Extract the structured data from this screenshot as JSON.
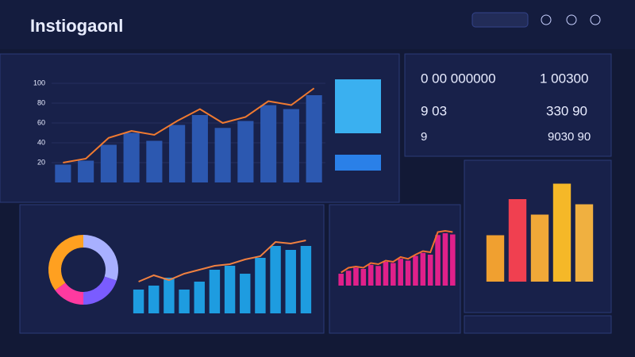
{
  "header": {
    "title": "Instiogaonl"
  },
  "kpis": [
    [
      "0 00 000000",
      "1 00300"
    ],
    [
      "9 03",
      "330 90"
    ],
    [
      "9",
      "9030 90"
    ]
  ],
  "charts": [
    {
      "type": "bar-line",
      "ylim": [
        0,
        100
      ],
      "yticks": [
        20,
        40,
        60,
        80,
        100
      ],
      "bars": [
        18,
        22,
        38,
        50,
        42,
        58,
        68,
        55,
        62,
        78,
        74,
        88
      ],
      "line": [
        20,
        24,
        45,
        52,
        48,
        62,
        74,
        60,
        66,
        82,
        78,
        95
      ],
      "bar_color": "#2c58b0",
      "line_color": "#f07a30"
    },
    {
      "type": "donut",
      "values": [
        30,
        20,
        15,
        35
      ],
      "colors": [
        "#a8b0ff",
        "#7a5cff",
        "#ff3aa0",
        "#ffa020"
      ]
    },
    {
      "type": "bar-line",
      "ylim": [
        0,
        100
      ],
      "bars": [
        30,
        35,
        45,
        30,
        40,
        55,
        60,
        50,
        70,
        85,
        80,
        85
      ],
      "line": [
        40,
        48,
        42,
        50,
        55,
        60,
        62,
        68,
        72,
        90,
        88,
        92
      ],
      "bar_color": "#1e9ce0",
      "line_color": "#f08040"
    },
    {
      "type": "bar-line",
      "ylim": [
        0,
        100
      ],
      "bars": [
        20,
        25,
        30,
        28,
        35,
        33,
        40,
        38,
        45,
        42,
        50,
        55,
        52,
        85,
        88,
        86
      ],
      "line": [
        22,
        30,
        32,
        30,
        38,
        36,
        42,
        40,
        48,
        45,
        52,
        58,
        56,
        90,
        92,
        90
      ],
      "bar_color": "#e0208a",
      "line_color": "#f07030"
    },
    {
      "type": "bar",
      "ylim": [
        0,
        100
      ],
      "values": [
        45,
        80,
        65,
        95,
        75
      ],
      "colors": [
        "#f0a030",
        "#f04050",
        "#f0a838",
        "#f5b828",
        "#f0b040"
      ]
    }
  ]
}
